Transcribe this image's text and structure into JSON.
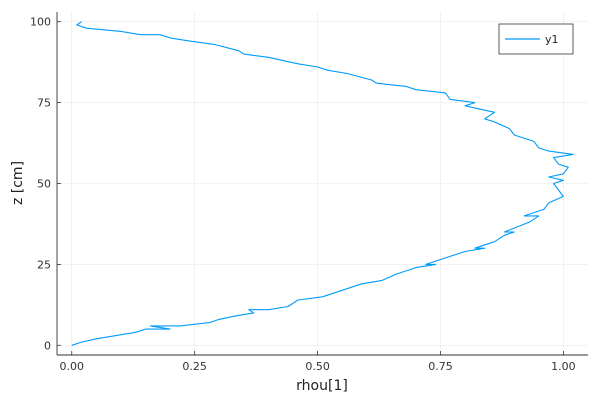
{
  "chart_data": {
    "type": "line",
    "xlabel": "rhou[1]",
    "ylabel": "z [cm]",
    "xlim": [
      -0.03,
      1.05
    ],
    "ylim": [
      -3,
      103
    ],
    "xticks": [
      0.0,
      0.25,
      0.5,
      0.75,
      1.0
    ],
    "xtick_labels": [
      "0.00",
      "0.25",
      "0.50",
      "0.75",
      "1.00"
    ],
    "yticks": [
      0,
      25,
      50,
      75,
      100
    ],
    "ytick_labels": [
      "0",
      "25",
      "50",
      "75",
      "100"
    ],
    "grid": true,
    "legend": {
      "position": "top-right",
      "entries": [
        "y1"
      ]
    },
    "series": [
      {
        "name": "y1",
        "color": "#009AFA",
        "x": [
          0.0,
          0.02,
          0.05,
          0.09,
          0.13,
          0.15,
          0.2,
          0.16,
          0.22,
          0.28,
          0.3,
          0.33,
          0.37,
          0.36,
          0.4,
          0.44,
          0.46,
          0.51,
          0.55,
          0.59,
          0.63,
          0.66,
          0.7,
          0.74,
          0.72,
          0.76,
          0.8,
          0.84,
          0.82,
          0.86,
          0.88,
          0.9,
          0.88,
          0.93,
          0.95,
          0.92,
          0.96,
          0.97,
          1.0,
          0.99,
          0.98,
          1.0,
          0.97,
          1.0,
          1.01,
          0.99,
          0.98,
          1.02,
          0.97,
          0.95,
          0.94,
          0.9,
          0.89,
          0.86,
          0.84,
          0.86,
          0.8,
          0.82,
          0.77,
          0.76,
          0.7,
          0.68,
          0.62,
          0.61,
          0.56,
          0.52,
          0.5,
          0.46,
          0.4,
          0.35,
          0.34,
          0.29,
          0.24,
          0.2,
          0.18,
          0.14,
          0.1,
          0.03,
          0.01,
          0.02
        ],
        "y": [
          0,
          1,
          2,
          3,
          4,
          5,
          5,
          6,
          6,
          7,
          8,
          9,
          10,
          11,
          11,
          12,
          14,
          15,
          17,
          19,
          20,
          22,
          24,
          25,
          25,
          27,
          29,
          30,
          30,
          32,
          34,
          35,
          35,
          38,
          40,
          40,
          42,
          44,
          46,
          48,
          50,
          51,
          52,
          53,
          55,
          56,
          58,
          59,
          60,
          61,
          63,
          65,
          67,
          69,
          70,
          72,
          74,
          75,
          76,
          78,
          79,
          80,
          81,
          82,
          84,
          85,
          86,
          87,
          89,
          90,
          91,
          93,
          94,
          95,
          96,
          96,
          97,
          98,
          99,
          100
        ]
      }
    ]
  }
}
